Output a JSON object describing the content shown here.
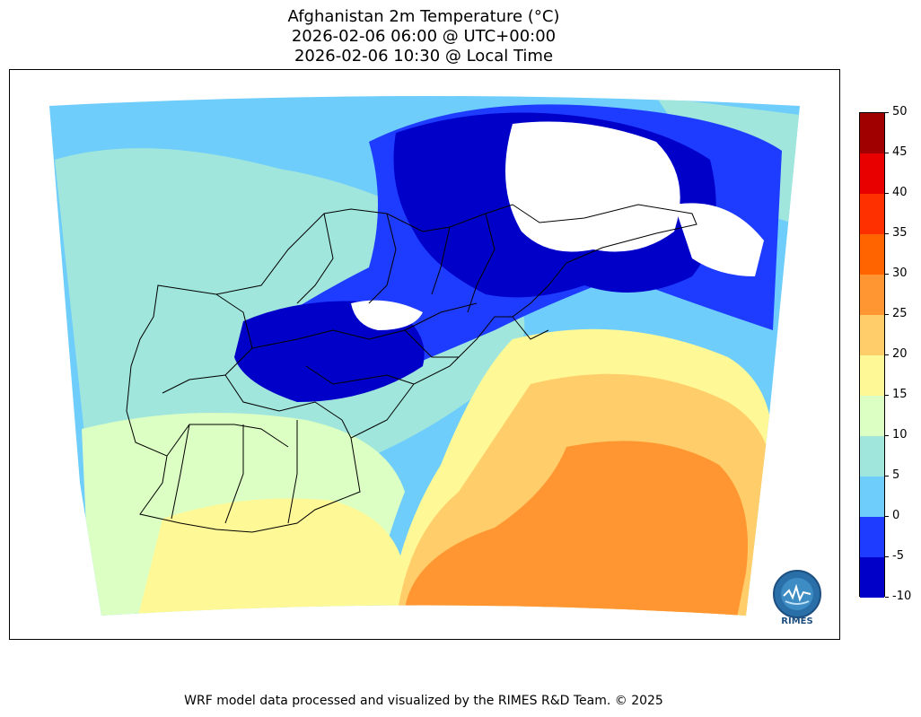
{
  "title": {
    "line1": "Afghanistan 2m Temperature (°C)",
    "line2": "2026-02-06 06:00 @ UTC+00:00",
    "line3": "2026-02-06 10:30 @ Local Time"
  },
  "colorbar": {
    "levels": [
      "50",
      "45",
      "40",
      "35",
      "30",
      "25",
      "20",
      "15",
      "10",
      "5",
      "0",
      "-5",
      "-10"
    ],
    "colors": [
      "#a00000",
      "#e80000",
      "#ff3000",
      "#ff6400",
      "#ff9632",
      "#ffcd69",
      "#fff896",
      "#dcffc3",
      "#a0e6dc",
      "#6ecdfa",
      "#1e3cff",
      "#0000c8"
    ]
  },
  "logo": {
    "text": "RIMES",
    "ring_text": "Regional Integrated Multi-Hazard Early Warning System"
  },
  "footer": "WRF model data processed and visualized by the RIMES R&D Team. © 2025"
}
